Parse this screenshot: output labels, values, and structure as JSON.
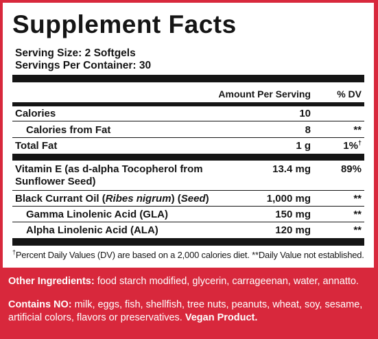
{
  "title": "Supplement Facts",
  "serving_size": "Serving Size: 2 Softgels",
  "servings_per_container": "Servings Per Container: 30",
  "header": {
    "amount": "Amount Per Serving",
    "dv": "% DV"
  },
  "rows": [
    {
      "name": "Calories",
      "amount": "10",
      "dv": ""
    },
    {
      "name": "Calories from Fat",
      "amount": "8",
      "dv": "**"
    },
    {
      "name": "Total Fat",
      "amount": "1 g",
      "dv": "1%",
      "dv_mark": "†"
    },
    {
      "name_line1": "Vitamin E (as d-alpha Tocopherol from",
      "name_line2": "Sunflower Seed)",
      "amount": "13.4 mg",
      "dv": "89%"
    },
    {
      "name_a": "Black Currant Oil (",
      "name_italic": "Ribes nigrum",
      "name_b": ") (",
      "name_italic2": "Seed",
      "name_c": ")",
      "amount": "1,000 mg",
      "dv": "**"
    },
    {
      "name": "Gamma Linolenic Acid (GLA)",
      "amount": "150 mg",
      "dv": "**"
    },
    {
      "name": "Alpha Linolenic Acid (ALA)",
      "amount": "120 mg",
      "dv": "**"
    }
  ],
  "footnote_mark": "†",
  "footnote": "Percent Daily Values (DV) are based on a 2,000 calories diet. **Daily Value not established.",
  "other_ingredients": {
    "label": "Other Ingredients:",
    "text": " food starch modified, glycerin, carrageenan, water, annatto."
  },
  "contains_no": {
    "label": "Contains NO:",
    "text": " milk, eggs, fish, shellfish, tree nuts, peanuts, wheat, soy, sesame, artificial colors, flavors or preservatives. ",
    "bold_end": "Vegan Product."
  },
  "colors": {
    "background": "#d8283c",
    "panel": "#ffffff",
    "ink": "#151515"
  }
}
